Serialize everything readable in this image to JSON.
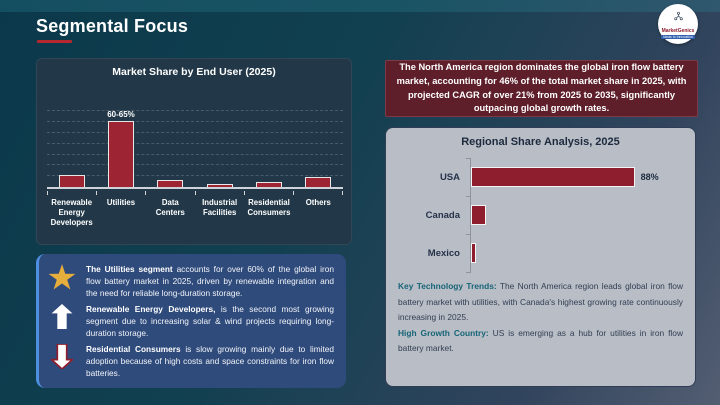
{
  "page": {
    "title": "Segmental Focus"
  },
  "logo": {
    "name": "MarketGenics",
    "tagline": "Ideas to Innovation"
  },
  "colors": {
    "accent_red": "#b5282e",
    "banner_maroon": "#5e1f2a",
    "bar_red": "#9c2433",
    "hbar_red": "#8e1e2d",
    "teal_label": "#176578",
    "insight_box_blue": "#2f4b7c",
    "gold_star": "#e5ae3d",
    "gray_card": "#b9bdc5"
  },
  "banner": {
    "text": "The North America region dominates the global iron flow battery market, accounting for 46% of the total market share in 2025, with projected CAGR of over 21% from 2025 to 2035, significantly outpacing global growth rates."
  },
  "chart_data": [
    {
      "type": "bar",
      "title": "Market Share by End User (2025)",
      "categories": [
        "Renewable Energy Developers",
        "Utilities",
        "Data Centers",
        "Industrial Facilities",
        "Residential Consumers",
        "Others"
      ],
      "values": [
        11,
        62.5,
        7,
        3,
        4.5,
        9.5
      ],
      "data_labels": [
        "",
        "60-65%",
        "",
        "",
        "",
        ""
      ],
      "unit": "%",
      "ylim": [
        0,
        70
      ],
      "grid": "dashed-horizontal",
      "legend": "none"
    },
    {
      "type": "bar",
      "orientation": "horizontal",
      "title": "Regional Share Analysis, 2025",
      "categories": [
        "USA",
        "Canada",
        "Mexico"
      ],
      "values": [
        88,
        8,
        2.5
      ],
      "data_labels": [
        "88%",
        "",
        ""
      ],
      "unit": "%",
      "xlim": [
        0,
        100
      ],
      "legend": "none"
    }
  ],
  "insights": [
    {
      "icon": "star",
      "lead": "The Utilities segment",
      "text": " accounts for over 60% of the global iron flow battery market in 2025, driven by renewable integration and the need for reliable long-duration storage."
    },
    {
      "icon": "arrow-up",
      "lead": "Renewable Energy Developers,",
      "text": " is the second most growing segment due to increasing solar & wind projects requiring long-duration storage."
    },
    {
      "icon": "arrow-down",
      "lead": "Residential Consumers",
      "text": " is slow growing mainly due to limited adoption because of high costs and space constraints for iron flow batteries."
    }
  ],
  "regional_notes": [
    {
      "label": "Key Technology Trends:",
      "text": " The North America region leads global iron flow battery market with utilities, with Canada's highest growing rate continuously increasing in 2025."
    },
    {
      "label": "High Growth Country:",
      "text": " US is emerging as a hub for utilities in iron flow battery market."
    }
  ]
}
